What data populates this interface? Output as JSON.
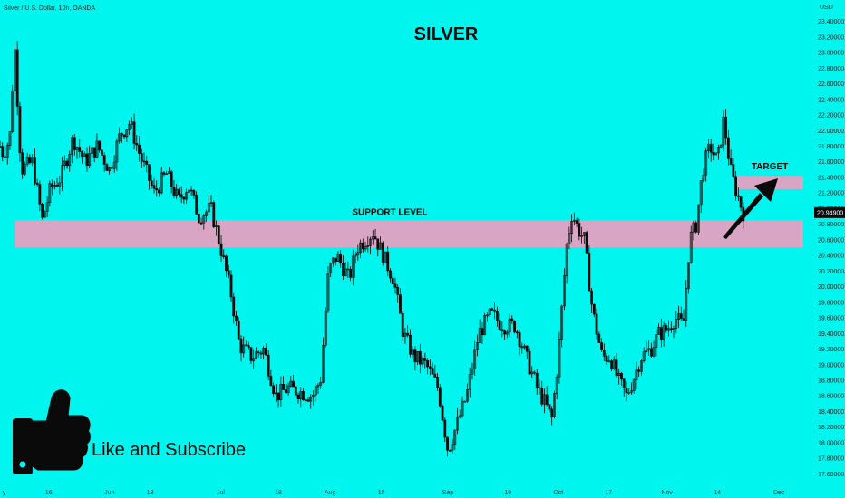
{
  "header": {
    "symbol_line": "Silver / U.S. Dollar, 10h, OANDA",
    "currency": "USD"
  },
  "chart_data": {
    "type": "candlestick",
    "title": "SILVER",
    "ylabel": "USD",
    "ylim": [
      17.5,
      23.5
    ],
    "yticks": [
      17.6,
      17.8,
      18.0,
      18.2,
      18.4,
      18.6,
      18.8,
      19.0,
      19.2,
      19.4,
      19.6,
      19.8,
      20.0,
      20.2,
      20.4,
      20.6,
      20.8,
      21.0,
      21.2,
      21.4,
      21.6,
      21.8,
      22.0,
      22.2,
      22.4,
      22.6,
      22.8,
      23.0,
      23.2,
      23.4
    ],
    "ytick_labels": [
      "17.60000",
      "17.80000",
      "18.00000",
      "18.20000",
      "18.40000",
      "18.60000",
      "18.80000",
      "19.00000",
      "19.20000",
      "19.40000",
      "19.60000",
      "19.80000",
      "20.00000",
      "20.20000",
      "20.40000",
      "20.60000",
      "20.80000",
      "21.00000",
      "21.20000",
      "21.40000",
      "21.60000",
      "21.80000",
      "22.00000",
      "22.20000",
      "22.40000",
      "22.60000",
      "22.80000",
      "23.00000",
      "23.20000",
      "23.40000"
    ],
    "xticks": [
      {
        "label": "y",
        "pos": 0.005
      },
      {
        "label": "16",
        "pos": 0.06
      },
      {
        "label": "Jun",
        "pos": 0.135
      },
      {
        "label": "13",
        "pos": 0.185
      },
      {
        "label": "Jul",
        "pos": 0.272
      },
      {
        "label": "18",
        "pos": 0.343
      },
      {
        "label": "Aug",
        "pos": 0.407
      },
      {
        "label": "15",
        "pos": 0.47
      },
      {
        "label": "Sep",
        "pos": 0.552
      },
      {
        "label": "19",
        "pos": 0.626
      },
      {
        "label": "Oct",
        "pos": 0.688
      },
      {
        "label": "17",
        "pos": 0.75
      },
      {
        "label": "Nov",
        "pos": 0.822
      },
      {
        "label": "14",
        "pos": 0.884
      },
      {
        "label": "Dec",
        "pos": 0.96
      }
    ],
    "last_price": 20.949,
    "last_price_label": "20.94900",
    "path_anchors": [
      [
        0,
        21.8
      ],
      [
        0.004,
        21.7
      ],
      [
        0.012,
        21.9
      ],
      [
        0.018,
        23.1
      ],
      [
        0.026,
        21.5
      ],
      [
        0.04,
        21.6
      ],
      [
        0.052,
        20.85
      ],
      [
        0.062,
        21.25
      ],
      [
        0.075,
        21.4
      ],
      [
        0.09,
        21.9
      ],
      [
        0.105,
        21.6
      ],
      [
        0.12,
        21.8
      ],
      [
        0.135,
        21.5
      ],
      [
        0.148,
        21.95
      ],
      [
        0.16,
        22.1
      ],
      [
        0.172,
        21.7
      ],
      [
        0.19,
        21.2
      ],
      [
        0.205,
        21.45
      ],
      [
        0.22,
        21.1
      ],
      [
        0.232,
        21.3
      ],
      [
        0.245,
        20.9
      ],
      [
        0.26,
        21.0
      ],
      [
        0.272,
        20.5
      ],
      [
        0.285,
        19.9
      ],
      [
        0.295,
        19.25
      ],
      [
        0.31,
        19.1
      ],
      [
        0.325,
        19.2
      ],
      [
        0.34,
        18.6
      ],
      [
        0.355,
        18.7
      ],
      [
        0.37,
        18.65
      ],
      [
        0.385,
        18.6
      ],
      [
        0.395,
        18.8
      ],
      [
        0.405,
        20.2
      ],
      [
        0.415,
        20.4
      ],
      [
        0.43,
        20.1
      ],
      [
        0.44,
        20.5
      ],
      [
        0.45,
        20.6
      ],
      [
        0.46,
        20.7
      ],
      [
        0.47,
        20.45
      ],
      [
        0.485,
        20.1
      ],
      [
        0.497,
        19.4
      ],
      [
        0.51,
        19.1
      ],
      [
        0.525,
        19.0
      ],
      [
        0.54,
        18.7
      ],
      [
        0.552,
        17.9
      ],
      [
        0.562,
        18.2
      ],
      [
        0.575,
        18.6
      ],
      [
        0.59,
        19.4
      ],
      [
        0.605,
        19.65
      ],
      [
        0.62,
        19.5
      ],
      [
        0.635,
        19.5
      ],
      [
        0.65,
        19.05
      ],
      [
        0.662,
        18.7
      ],
      [
        0.672,
        18.5
      ],
      [
        0.68,
        18.3
      ],
      [
        0.688,
        19.1
      ],
      [
        0.698,
        20.5
      ],
      [
        0.705,
        20.95
      ],
      [
        0.712,
        20.75
      ],
      [
        0.72,
        20.6
      ],
      [
        0.73,
        19.7
      ],
      [
        0.742,
        19.1
      ],
      [
        0.752,
        19.1
      ],
      [
        0.762,
        18.8
      ],
      [
        0.772,
        18.6
      ],
      [
        0.78,
        18.8
      ],
      [
        0.79,
        19.1
      ],
      [
        0.802,
        19.2
      ],
      [
        0.812,
        19.4
      ],
      [
        0.822,
        19.45
      ],
      [
        0.832,
        19.6
      ],
      [
        0.842,
        19.5
      ],
      [
        0.85,
        20.6
      ],
      [
        0.858,
        20.8
      ],
      [
        0.866,
        21.5
      ],
      [
        0.875,
        21.8
      ],
      [
        0.884,
        21.6
      ],
      [
        0.892,
        22.15
      ],
      [
        0.9,
        21.5
      ],
      [
        0.908,
        21.2
      ],
      [
        0.916,
        20.95
      ]
    ],
    "support_zone": {
      "low": 20.5,
      "high": 20.85,
      "label": "SUPPORT LEVEL"
    },
    "target_zone": {
      "low": 21.25,
      "high": 21.42,
      "label": "TARGET"
    },
    "annotations": {
      "overlay_text": "Like and Subscribe"
    }
  },
  "colors": {
    "background": "#00f5ee",
    "candle_body": "#0a0a0a",
    "zone": "#d8a6c4",
    "arrow": "#0a0a0a",
    "price_label_bg": "#0a0a0a",
    "price_label_text": "#ffffff",
    "thumb_fill": "#0a0a0a",
    "thumb_hole": "#00f5ee"
  },
  "icons": {
    "thumbs_up": "thumbs-up-icon"
  }
}
